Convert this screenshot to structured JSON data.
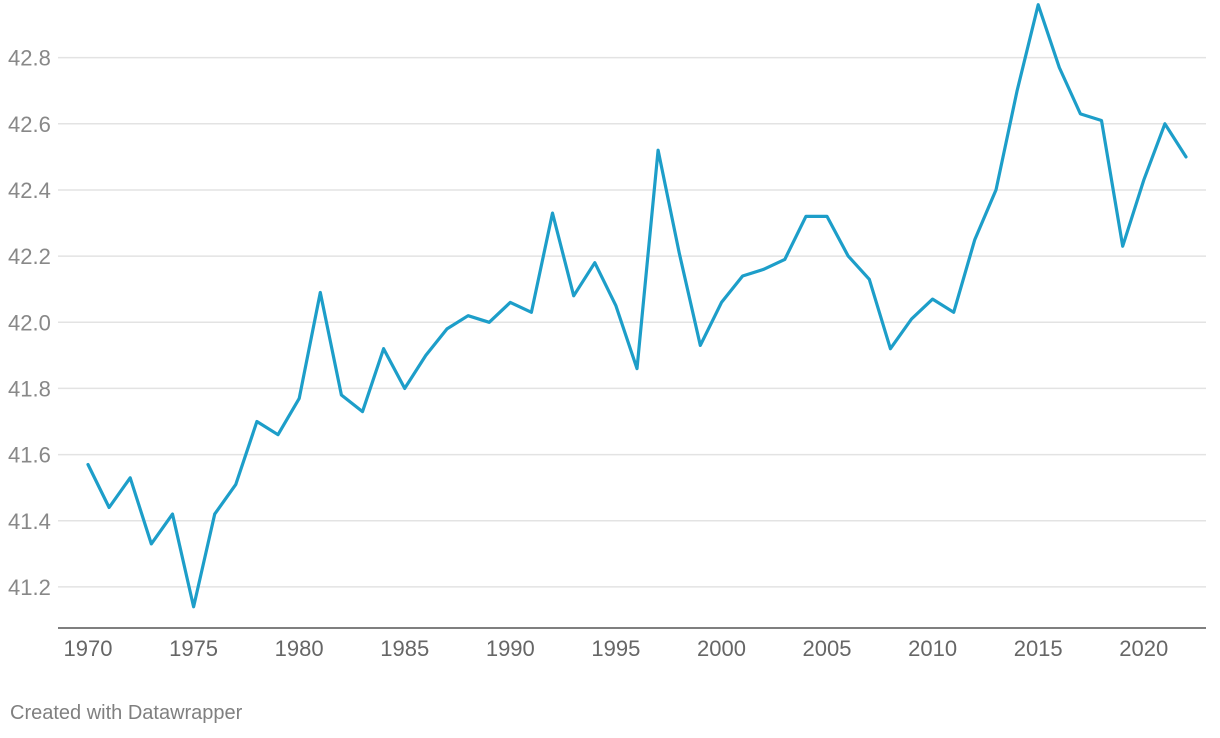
{
  "chart_data": {
    "type": "line",
    "title": "",
    "xlabel": "",
    "ylabel": "",
    "xlim": [
      1970,
      2022
    ],
    "ylim": [
      41.1,
      42.95
    ],
    "x_ticks": [
      1970,
      1975,
      1980,
      1985,
      1990,
      1995,
      2000,
      2005,
      2010,
      2015,
      2020
    ],
    "y_ticks": [
      41.2,
      41.4,
      41.6,
      41.8,
      42.0,
      42.2,
      42.4,
      42.6,
      42.8
    ],
    "y_tick_labels": [
      "41.2",
      "41.4",
      "41.6",
      "41.8",
      "42.0",
      "42.2",
      "42.4",
      "42.6",
      "42.8"
    ],
    "x_tick_labels": [
      "1970",
      "1975",
      "1980",
      "1985",
      "1990",
      "1995",
      "2000",
      "2005",
      "2010",
      "2015",
      "2020"
    ],
    "grid": true,
    "legend": "none",
    "series": [
      {
        "color": "#1d9ec9",
        "x": [
          1970,
          1971,
          1972,
          1973,
          1974,
          1975,
          1976,
          1977,
          1978,
          1979,
          1980,
          1981,
          1982,
          1983,
          1984,
          1985,
          1986,
          1987,
          1988,
          1989,
          1990,
          1991,
          1992,
          1993,
          1994,
          1995,
          1996,
          1997,
          1998,
          1999,
          2000,
          2001,
          2002,
          2003,
          2004,
          2005,
          2006,
          2007,
          2008,
          2009,
          2010,
          2011,
          2012,
          2013,
          2014,
          2015,
          2016,
          2017,
          2018,
          2019,
          2020,
          2021,
          2022
        ],
        "values": [
          41.57,
          41.44,
          41.53,
          41.33,
          41.42,
          41.14,
          41.42,
          41.51,
          41.7,
          41.66,
          41.77,
          42.09,
          41.78,
          41.73,
          41.92,
          41.8,
          41.9,
          41.98,
          42.02,
          42.0,
          42.06,
          42.03,
          42.33,
          42.08,
          42.18,
          42.05,
          41.86,
          42.52,
          42.21,
          41.93,
          42.06,
          42.14,
          42.16,
          42.19,
          42.32,
          42.32,
          42.2,
          42.13,
          41.92,
          42.01,
          42.07,
          42.03,
          42.25,
          42.4,
          42.7,
          42.96,
          42.77,
          42.63,
          42.61,
          42.23,
          42.43,
          42.6,
          42.5
        ]
      }
    ]
  },
  "footer": {
    "credit": "Created with Datawrapper"
  }
}
